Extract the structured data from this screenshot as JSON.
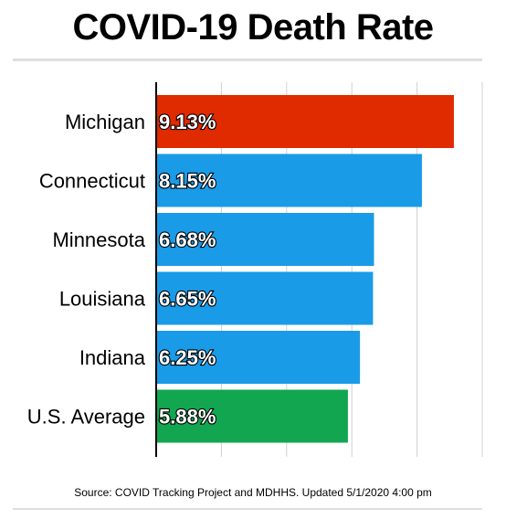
{
  "title": "COVID-19 Death Rate",
  "source": "Source: COVID Tracking Project and MDHHS. Updated 5/1/2020 4:00 pm",
  "colors": {
    "highlight": "#e02a00",
    "default": "#1a9be8",
    "average": "#12a650",
    "grid": "#d0d0d0",
    "axis": "#000000"
  },
  "chart_data": {
    "type": "bar",
    "orientation": "horizontal",
    "title": "COVID-19 Death Rate",
    "categories": [
      "Michigan",
      "Connecticut",
      "Minnesota",
      "Louisiana",
      "Indiana",
      "U.S. Average"
    ],
    "values": [
      9.13,
      8.15,
      6.68,
      6.65,
      6.25,
      5.88
    ],
    "data_labels": [
      "9.13%",
      "8.15%",
      "6.68%",
      "6.65%",
      "6.25%",
      "5.88%"
    ],
    "bar_colors": [
      "#e02a00",
      "#1a9be8",
      "#1a9be8",
      "#1a9be8",
      "#1a9be8",
      "#12a650"
    ],
    "unit": "%",
    "xlim": [
      0,
      10
    ],
    "gridlines": [
      2,
      4,
      6,
      8,
      10
    ],
    "grid": true,
    "legend": "none"
  }
}
